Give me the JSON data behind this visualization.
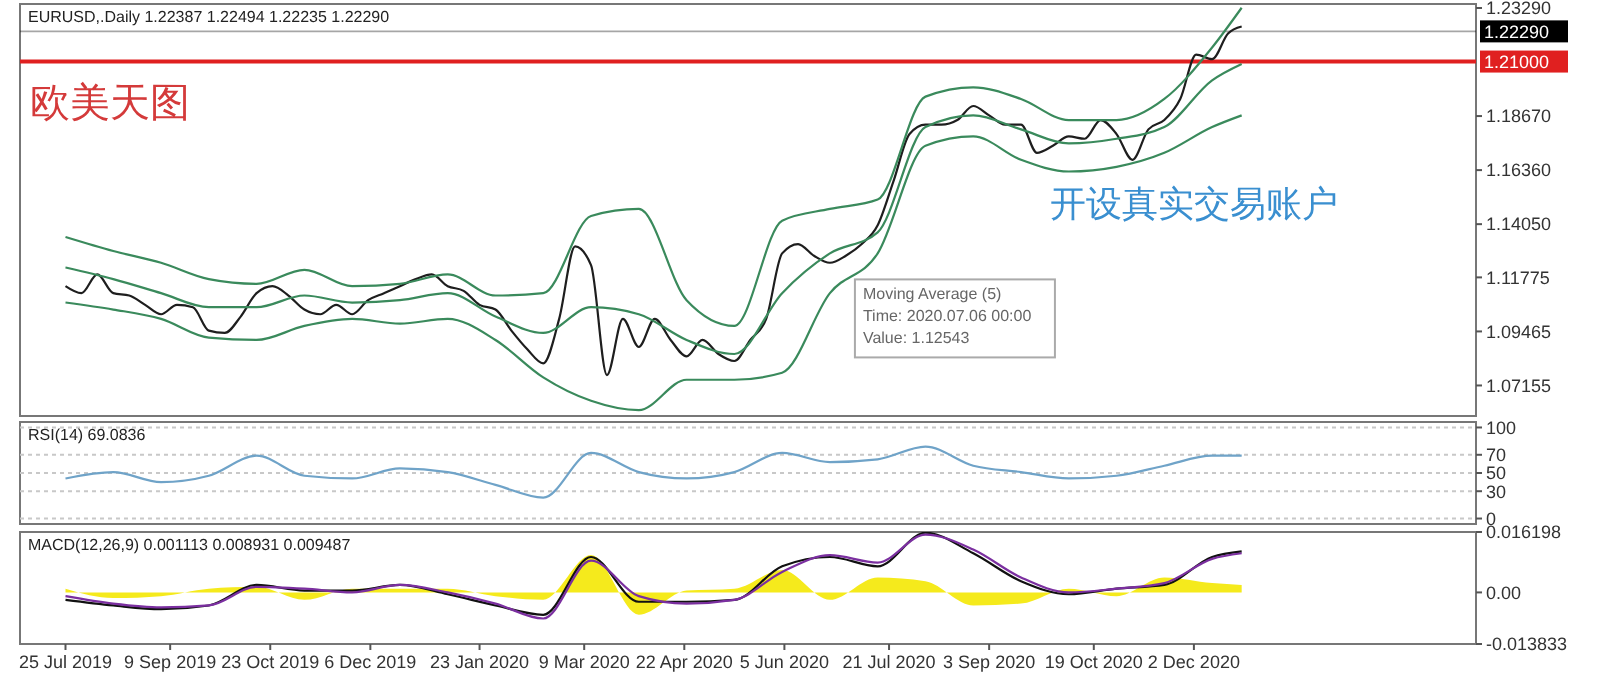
{
  "chart_data": [
    {
      "type": "line",
      "title": "EURUSD,.Daily 1.22387 1.22494 1.22235 1.22290",
      "tick_labels": "y",
      "xlim": [
        "2019-07-05",
        "2021-04-05"
      ],
      "ylim": [
        1.0585,
        1.2346
      ],
      "yticks": [
        1.07155,
        1.09465,
        1.11775,
        {
          "value": 1.1405,
          "label": "1.14050"
        },
        {
          "value": 1.1636,
          "label": "1.16360"
        },
        {
          "value": 1.1867,
          "label": "1.18670"
        },
        {
          "value": 1.2329,
          "label": "1.23290"
        }
      ],
      "ref_lines": [
        {
          "axis": "y",
          "value": 1.21,
          "label": "1.21000",
          "color": "#e02020"
        },
        {
          "axis": "y",
          "value": 1.2229,
          "label": "1.22290",
          "color": "#000000"
        }
      ],
      "annotations": [
        "欧美天图",
        "开设真实交易账户",
        {
          "text": "Moving Average (5)\nTime: 2020.07.06 00:00\nValue: 1.12543",
          "x": "2020-07-06",
          "y": 1.12543
        }
      ],
      "x": [
        "2019-07-25",
        "2019-08-01",
        "2019-08-08",
        "2019-08-15",
        "2019-08-22",
        "2019-08-29",
        "2019-09-05",
        "2019-09-12",
        "2019-09-19",
        "2019-09-26",
        "2019-10-03",
        "2019-10-10",
        "2019-10-17",
        "2019-10-24",
        "2019-10-31",
        "2019-11-07",
        "2019-11-14",
        "2019-11-21",
        "2019-11-28",
        "2019-12-05",
        "2019-12-12",
        "2019-12-19",
        "2019-12-26",
        "2020-01-02",
        "2020-01-09",
        "2020-01-16",
        "2020-01-23",
        "2020-01-30",
        "2020-02-06",
        "2020-02-13",
        "2020-02-20",
        "2020-02-27",
        "2020-03-05",
        "2020-03-12",
        "2020-03-19",
        "2020-03-26",
        "2020-04-02",
        "2020-04-09",
        "2020-04-16",
        "2020-04-23",
        "2020-04-30",
        "2020-05-07",
        "2020-05-14",
        "2020-05-21",
        "2020-05-28",
        "2020-06-04",
        "2020-06-11",
        "2020-06-18",
        "2020-06-25",
        "2020-07-02",
        "2020-07-09",
        "2020-07-16",
        "2020-07-23",
        "2020-07-30",
        "2020-08-06",
        "2020-08-13",
        "2020-08-20",
        "2020-08-27",
        "2020-09-03",
        "2020-09-10",
        "2020-09-17",
        "2020-09-24",
        "2020-10-01",
        "2020-10-08",
        "2020-10-15",
        "2020-10-22",
        "2020-10-29",
        "2020-11-05",
        "2020-11-12",
        "2020-11-19",
        "2020-11-26",
        "2020-12-03",
        "2020-12-10",
        "2020-12-17",
        "2020-12-23"
      ],
      "series": [
        {
          "color": "#1e1e1e",
          "values": [
            1.114,
            1.111,
            1.119,
            1.111,
            1.11,
            1.106,
            1.102,
            1.106,
            1.105,
            1.095,
            1.094,
            1.101,
            1.111,
            1.114,
            1.11,
            1.104,
            1.102,
            1.106,
            1.102,
            1.108,
            1.111,
            1.114,
            1.117,
            1.119,
            1.114,
            1.112,
            1.106,
            1.104,
            1.095,
            1.087,
            1.081,
            1.1,
            1.131,
            1.123,
            1.076,
            1.1,
            1.088,
            1.1,
            1.091,
            1.084,
            1.091,
            1.085,
            1.082,
            1.091,
            1.1,
            1.128,
            1.132,
            1.127,
            1.124,
            1.127,
            1.132,
            1.14,
            1.159,
            1.179,
            1.183,
            1.183,
            1.185,
            1.191,
            1.187,
            1.183,
            1.183,
            1.171,
            1.174,
            1.178,
            1.177,
            1.185,
            1.179,
            1.168,
            1.181,
            1.185,
            1.194,
            1.213,
            1.211,
            1.222,
            1.225
          ]
        },
        {
          "color": "#3a8a5c",
          "x": [
            "2019-07-25",
            "2019-08-15",
            "2019-09-05",
            "2019-09-26",
            "2019-10-17",
            "2019-11-07",
            "2019-11-28",
            "2019-12-19",
            "2020-01-09",
            "2020-01-30",
            "2020-02-20",
            "2020-03-12",
            "2020-04-02",
            "2020-04-23",
            "2020-05-14",
            "2020-06-04",
            "2020-06-25",
            "2020-07-16",
            "2020-08-06",
            "2020-08-27",
            "2020-09-17",
            "2020-10-08",
            "2020-10-29",
            "2020-11-19",
            "2020-12-10",
            "2020-12-23"
          ],
          "values": [
            1.135,
            1.129,
            1.124,
            1.117,
            1.115,
            1.121,
            1.114,
            1.115,
            1.119,
            1.11,
            1.111,
            1.144,
            1.147,
            1.108,
            1.097,
            1.142,
            1.147,
            1.151,
            1.195,
            1.199,
            1.194,
            1.185,
            1.185,
            1.194,
            1.216,
            1.233
          ]
        },
        {
          "color": "#3a8a5c",
          "x": [
            "2019-07-25",
            "2019-08-15",
            "2019-09-05",
            "2019-09-26",
            "2019-10-17",
            "2019-11-07",
            "2019-11-28",
            "2019-12-19",
            "2020-01-09",
            "2020-01-30",
            "2020-02-20",
            "2020-03-12",
            "2020-04-02",
            "2020-04-23",
            "2020-05-14",
            "2020-06-04",
            "2020-06-25",
            "2020-07-16",
            "2020-08-06",
            "2020-08-27",
            "2020-09-17",
            "2020-10-08",
            "2020-10-29",
            "2020-11-19",
            "2020-12-10",
            "2020-12-23"
          ],
          "values": [
            1.122,
            1.117,
            1.111,
            1.105,
            1.105,
            1.11,
            1.107,
            1.108,
            1.111,
            1.101,
            1.094,
            1.105,
            1.102,
            1.091,
            1.085,
            1.111,
            1.128,
            1.137,
            1.182,
            1.187,
            1.181,
            1.175,
            1.177,
            1.182,
            1.202,
            1.209
          ]
        },
        {
          "color": "#3a8a5c",
          "x": [
            "2019-07-25",
            "2019-08-15",
            "2019-09-05",
            "2019-09-26",
            "2019-10-17",
            "2019-11-07",
            "2019-11-28",
            "2019-12-19",
            "2020-01-09",
            "2020-01-30",
            "2020-02-20",
            "2020-03-12",
            "2020-04-02",
            "2020-04-23",
            "2020-05-14",
            "2020-06-04",
            "2020-06-25",
            "2020-07-16",
            "2020-08-06",
            "2020-08-27",
            "2020-09-17",
            "2020-10-08",
            "2020-10-29",
            "2020-11-19",
            "2020-12-10",
            "2020-12-23"
          ],
          "values": [
            1.107,
            1.104,
            1.1,
            1.092,
            1.091,
            1.097,
            1.1,
            1.098,
            1.1,
            1.091,
            1.075,
            1.065,
            1.061,
            1.074,
            1.074,
            1.077,
            1.111,
            1.128,
            1.174,
            1.178,
            1.168,
            1.163,
            1.165,
            1.171,
            1.182,
            1.187
          ]
        }
      ]
    },
    {
      "type": "line",
      "title": "RSI(14) 69.0836",
      "tick_labels": "y",
      "grid": "y",
      "xlim": [
        "2019-07-05",
        "2021-04-05"
      ],
      "ylim": [
        -6,
        106
      ],
      "yticks": [
        0,
        30,
        50,
        70,
        100
      ],
      "x": [
        "2019-07-25",
        "2019-08-15",
        "2019-09-05",
        "2019-09-26",
        "2019-10-17",
        "2019-11-07",
        "2019-11-28",
        "2019-12-19",
        "2020-01-09",
        "2020-01-30",
        "2020-02-20",
        "2020-03-12",
        "2020-04-02",
        "2020-04-23",
        "2020-05-14",
        "2020-06-04",
        "2020-06-25",
        "2020-07-16",
        "2020-08-06",
        "2020-08-27",
        "2020-09-17",
        "2020-10-08",
        "2020-10-29",
        "2020-11-19",
        "2020-12-10",
        "2020-12-23"
      ],
      "series": [
        {
          "color": "#6fa3c8",
          "values": [
            44,
            51,
            40,
            47,
            69,
            47,
            44,
            55,
            51,
            37,
            23,
            72,
            51,
            44,
            51,
            72,
            62,
            65,
            79,
            58,
            51,
            44,
            47,
            58,
            69,
            69
          ]
        }
      ]
    },
    {
      "type": "line",
      "title": "MACD(12,26,9) 0.001113 0.008931 0.009487",
      "xlim": [
        "2019-07-05",
        "2021-04-05"
      ],
      "xticks": [
        {
          "value": "2019-07-25",
          "label": "25 Jul 2019"
        },
        {
          "value": "2019-09-09",
          "label": "9 Sep 2019"
        },
        {
          "value": "2019-10-23",
          "label": "23 Oct 2019"
        },
        {
          "value": "2019-12-06",
          "label": "6 Dec 2019"
        },
        {
          "value": "2020-01-23",
          "label": "23 Jan 2020"
        },
        {
          "value": "2020-03-09",
          "label": "9 Mar 2020"
        },
        {
          "value": "2020-04-22",
          "label": "22 Apr 2020"
        },
        {
          "value": "2020-06-05",
          "label": "5 Jun 2020"
        },
        {
          "value": "2020-07-21",
          "label": "21 Jul 2020"
        },
        {
          "value": "2020-09-03",
          "label": "3 Sep 2020"
        },
        {
          "value": "2020-10-19",
          "label": "19 Oct 2020"
        },
        {
          "value": "2020-12-02",
          "label": "2 Dec 2020"
        }
      ],
      "ylim": [
        -0.013833,
        0.016198
      ],
      "yticks": [
        0.016198,
        {
          "value": 0,
          "label": "0.00"
        },
        -0.013833
      ],
      "x": [
        "2019-07-25",
        "2019-08-15",
        "2019-09-05",
        "2019-09-26",
        "2019-10-17",
        "2019-11-07",
        "2019-11-28",
        "2019-12-19",
        "2020-01-09",
        "2020-01-30",
        "2020-02-20",
        "2020-03-12",
        "2020-04-02",
        "2020-04-23",
        "2020-05-14",
        "2020-06-04",
        "2020-06-25",
        "2020-07-16",
        "2020-08-06",
        "2020-08-27",
        "2020-09-17",
        "2020-10-08",
        "2020-10-29",
        "2020-11-19",
        "2020-12-10",
        "2020-12-23"
      ],
      "series": [
        {
          "type": "area",
          "color": "#f5ea1c",
          "values": [
            0.001,
            -0.0015,
            -0.001,
            0.001,
            0.0015,
            -0.002,
            0.001,
            0.001,
            0.001,
            -0.001,
            -0.002,
            0.01,
            -0.006,
            0.0005,
            0.001,
            0.006,
            -0.002,
            0.004,
            0.003,
            -0.0035,
            -0.003,
            0.001,
            -0.001,
            0.004,
            0.0025,
            0.002
          ]
        },
        {
          "color": "#111111",
          "values": [
            -0.002,
            -0.0035,
            -0.0045,
            -0.0035,
            0.002,
            0.0005,
            0.0005,
            0.002,
            -0.0005,
            -0.0035,
            -0.006,
            0.0095,
            -0.0025,
            -0.0025,
            -0.002,
            0.007,
            0.0095,
            0.007,
            0.016,
            0.0105,
            0.003,
            -0.0005,
            0.001,
            0.002,
            0.0095,
            0.011
          ]
        },
        {
          "color": "#7b2fa0",
          "values": [
            -0.001,
            -0.003,
            -0.004,
            -0.0035,
            0.0015,
            0.001,
            0,
            0.002,
            0,
            -0.003,
            -0.007,
            0.0085,
            -0.001,
            -0.003,
            -0.002,
            0.0055,
            0.01,
            0.008,
            0.0155,
            0.0115,
            0.004,
            0,
            0.001,
            0.0025,
            0.009,
            0.0105
          ]
        }
      ]
    }
  ]
}
